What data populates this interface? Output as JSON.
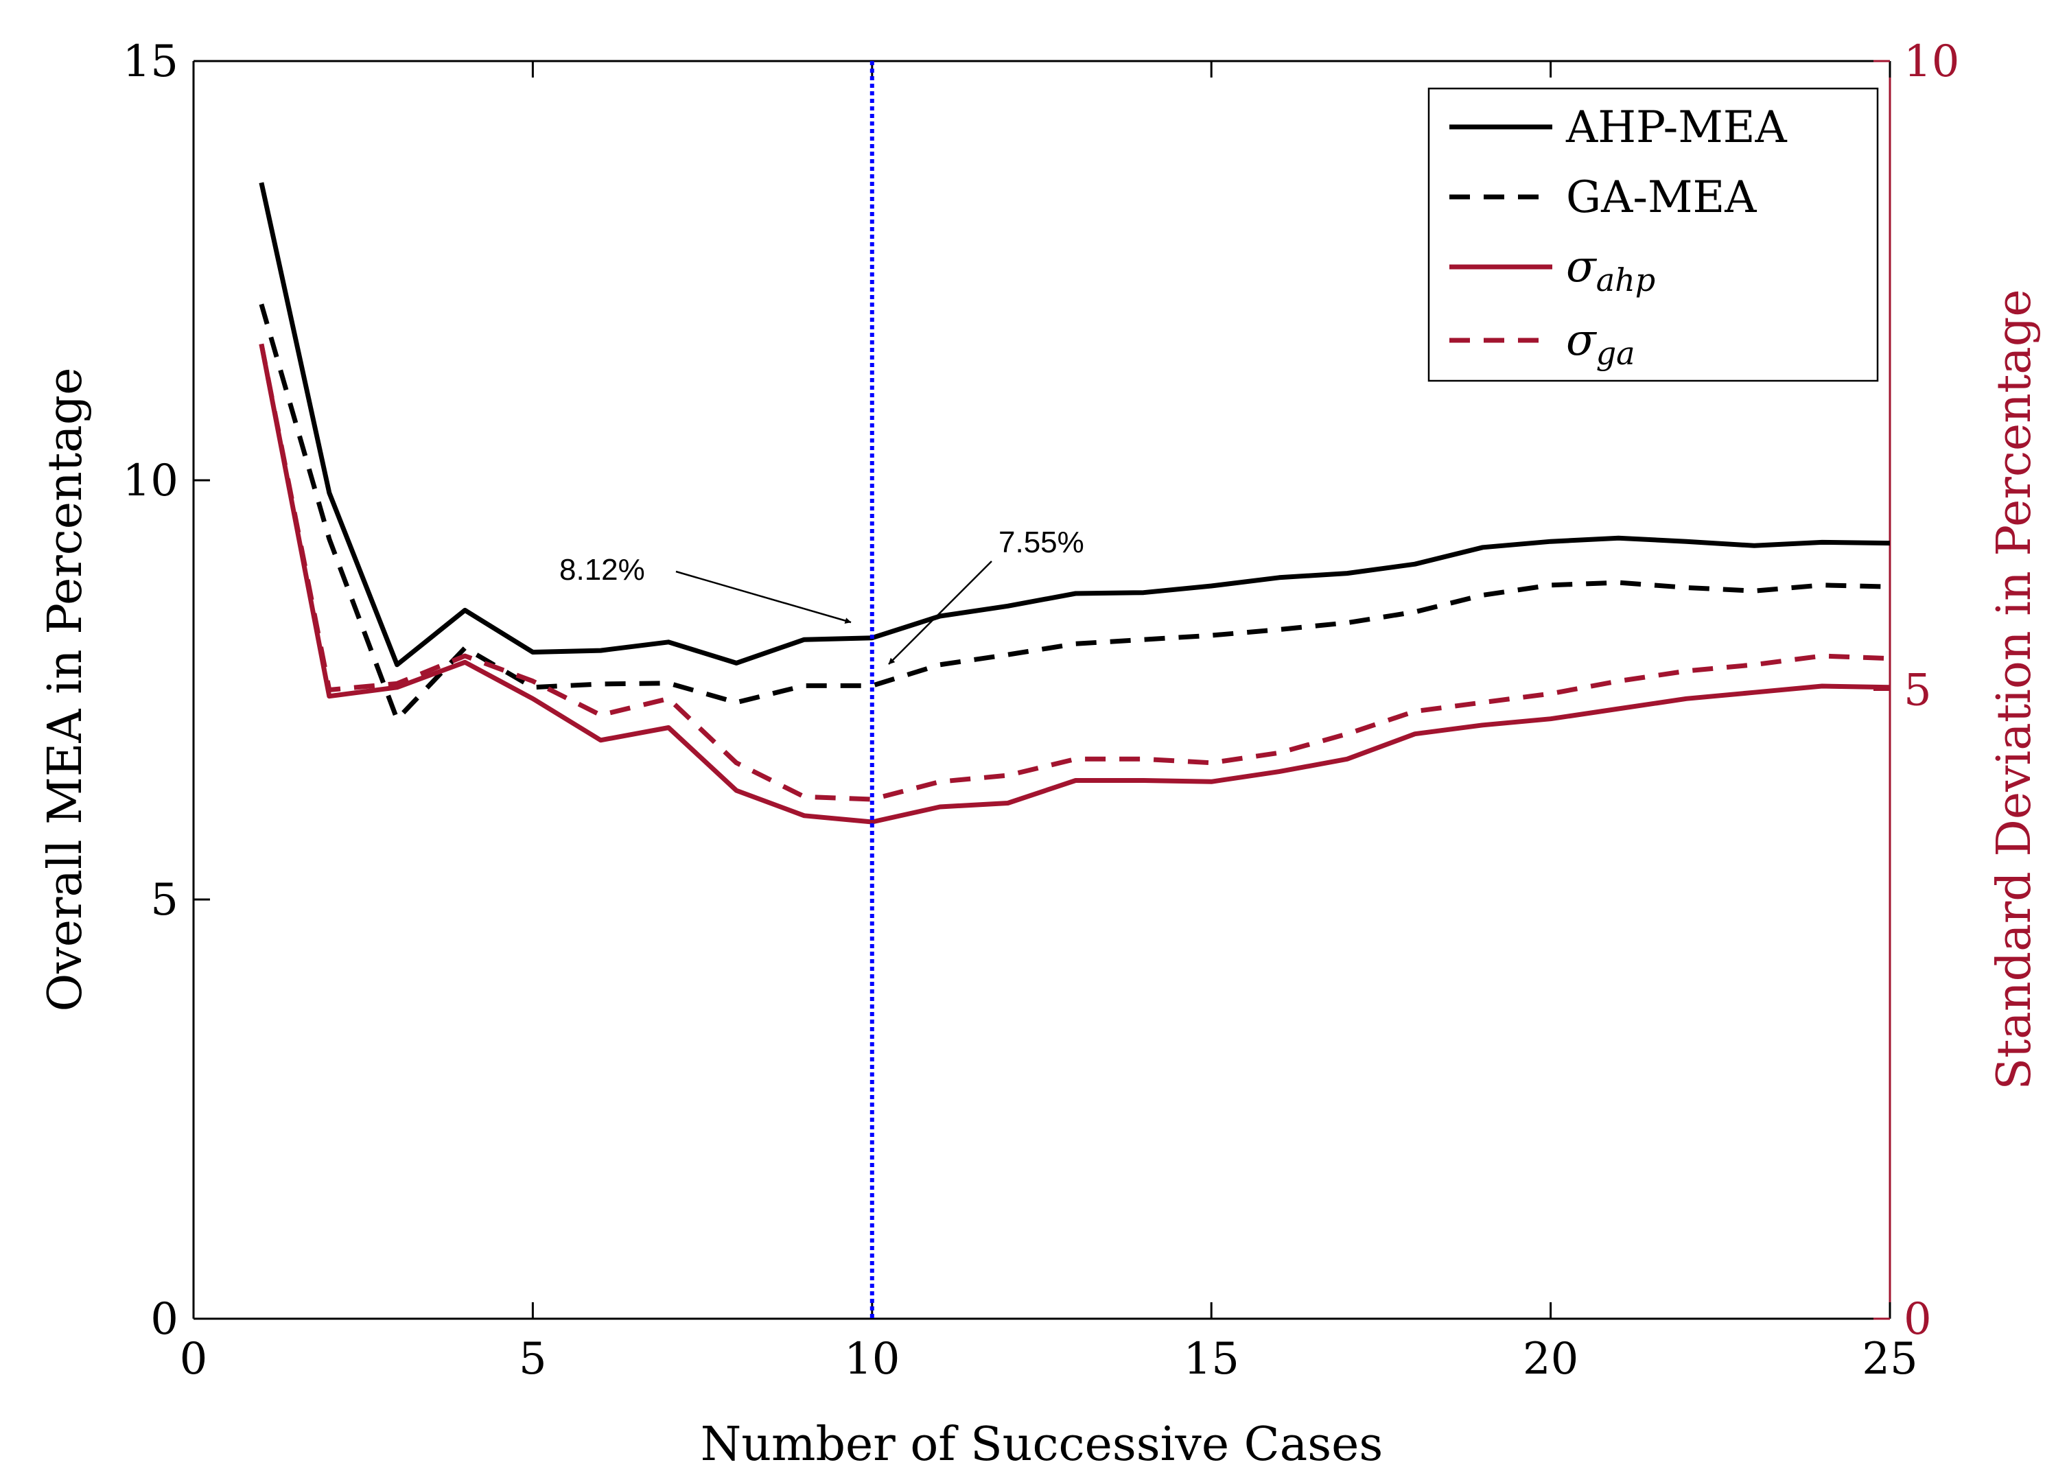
{
  "chart_data": {
    "type": "line",
    "xlabel": "Number of Successive Cases",
    "ylabel_left": "Overall MEA in Percentage",
    "ylabel_right": "Standard Deviation in Percentage",
    "xlim": [
      0,
      25
    ],
    "ylim_left": [
      0,
      15
    ],
    "ylim_right": [
      0,
      10
    ],
    "xticks": [
      "0",
      "5",
      "10",
      "15",
      "20",
      "25"
    ],
    "yticks_left": [
      "0",
      "5",
      "10",
      "15"
    ],
    "yticks_right": [
      "0",
      "5",
      "10"
    ],
    "colors": {
      "black": "#000000",
      "red": "#a2142f",
      "blue": "#0000ff"
    },
    "x": [
      1,
      2,
      3,
      4,
      5,
      6,
      7,
      8,
      9,
      10,
      11,
      12,
      13,
      14,
      15,
      16,
      17,
      18,
      19,
      20,
      21,
      22,
      23,
      24,
      25
    ],
    "series": [
      {
        "name": "AHP-MEA",
        "axis": "left",
        "style": "solid",
        "color": "#000000",
        "values": [
          13.55,
          9.85,
          7.8,
          8.45,
          7.95,
          7.97,
          8.07,
          7.82,
          8.1,
          8.12,
          8.38,
          8.5,
          8.65,
          8.66,
          8.74,
          8.84,
          8.89,
          9.0,
          9.2,
          9.27,
          9.31,
          9.27,
          9.22,
          9.26,
          9.25
        ]
      },
      {
        "name": "GA-MEA",
        "axis": "left",
        "style": "dashed",
        "color": "#000000",
        "values": [
          12.1,
          9.3,
          7.15,
          8.0,
          7.53,
          7.57,
          7.58,
          7.35,
          7.55,
          7.55,
          7.8,
          7.92,
          8.05,
          8.1,
          8.15,
          8.22,
          8.3,
          8.43,
          8.63,
          8.75,
          8.78,
          8.72,
          8.68,
          8.75,
          8.73
        ]
      },
      {
        "name": "σ_ahp",
        "legend_symbol": "σ",
        "legend_sub": "ahp",
        "axis": "right",
        "style": "solid",
        "color": "#a2142f",
        "values": [
          7.75,
          4.95,
          5.02,
          5.22,
          4.93,
          4.6,
          4.7,
          4.2,
          4.0,
          3.95,
          4.07,
          4.1,
          4.28,
          4.28,
          4.27,
          4.35,
          4.45,
          4.65,
          4.72,
          4.77,
          4.85,
          4.93,
          4.98,
          5.03,
          5.02
        ]
      },
      {
        "name": "σ_ga",
        "legend_symbol": "σ",
        "legend_sub": "ga",
        "axis": "right",
        "style": "dashed",
        "color": "#a2142f",
        "values": [
          7.75,
          5.0,
          5.05,
          5.27,
          5.07,
          4.8,
          4.93,
          4.42,
          4.15,
          4.13,
          4.27,
          4.32,
          4.45,
          4.45,
          4.42,
          4.5,
          4.65,
          4.83,
          4.9,
          4.97,
          5.07,
          5.15,
          5.2,
          5.27,
          5.25
        ]
      }
    ],
    "reference_line": {
      "x": 10,
      "style": "dotted",
      "color": "#0000ff"
    },
    "annotations": [
      {
        "text": "8.12%",
        "target_x": 10,
        "target_y": 8.12
      },
      {
        "text": "7.55%",
        "target_x": 10,
        "target_y": 7.55
      }
    ],
    "legend_position": "top-right",
    "grid": false
  }
}
